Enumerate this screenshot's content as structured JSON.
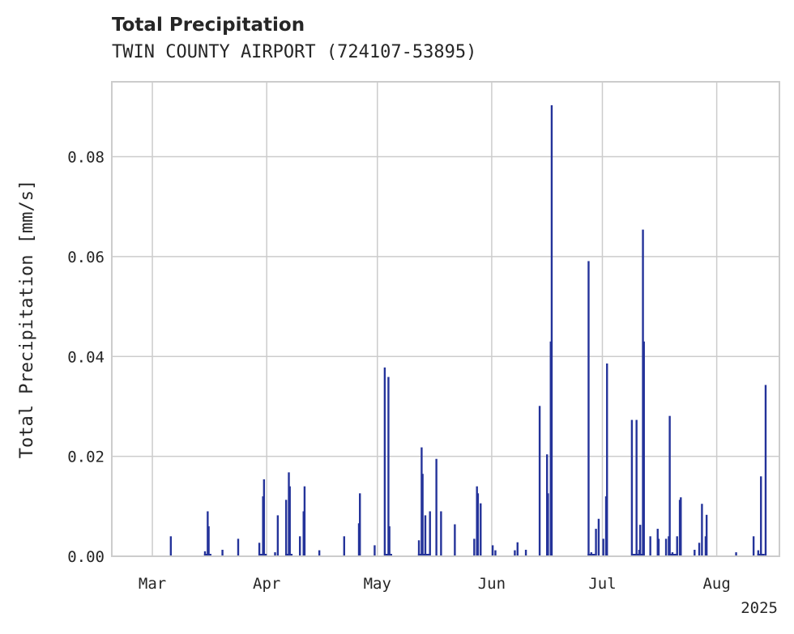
{
  "chart_data": {
    "type": "bar",
    "title": "Total Precipitation",
    "subtitle": "TWIN COUNTY AIRPORT (724107-53895)",
    "xlabel": "",
    "ylabel": "Total Precipitation [mm/s]",
    "x_tick_labels": [
      "Mar",
      "Apr",
      "May",
      "Jun",
      "Jul",
      "Aug"
    ],
    "x_ticks_dates": [
      "2025-03-01",
      "2025-04-01",
      "2025-05-01",
      "2025-06-01",
      "2025-07-01",
      "2025-08-01"
    ],
    "x_year_label": "2025",
    "xlim": [
      "2025-02-18",
      "2025-08-18"
    ],
    "ylim": [
      0,
      0.095
    ],
    "y_ticks": [
      0.0,
      0.02,
      0.04,
      0.06,
      0.08
    ],
    "y_tick_labels": [
      "0.00",
      "0.02",
      "0.04",
      "0.06",
      "0.08"
    ],
    "grid": true,
    "bar_color": "#24339a",
    "points": [
      [
        "2025-03-06",
        0.004
      ],
      [
        "2025-03-15",
        0.001
      ],
      [
        "2025-03-16",
        0.009
      ],
      [
        "2025-03-16",
        0.006
      ],
      [
        "2025-03-20",
        0.0013
      ],
      [
        "2025-03-24",
        0.0035
      ],
      [
        "2025-03-30",
        0.0027
      ],
      [
        "2025-03-31",
        0.0154
      ],
      [
        "2025-03-31",
        0.012
      ],
      [
        "2025-04-03",
        0.0008
      ],
      [
        "2025-04-04",
        0.0082
      ],
      [
        "2025-04-06",
        0.0113
      ],
      [
        "2025-04-07",
        0.0168
      ],
      [
        "2025-04-07",
        0.014
      ],
      [
        "2025-04-10",
        0.004
      ],
      [
        "2025-04-11",
        0.014
      ],
      [
        "2025-04-11",
        0.009
      ],
      [
        "2025-04-15",
        0.0012
      ],
      [
        "2025-04-22",
        0.004
      ],
      [
        "2025-04-26",
        0.0126
      ],
      [
        "2025-04-26",
        0.0066
      ],
      [
        "2025-04-30",
        0.0022
      ],
      [
        "2025-05-03",
        0.0378
      ],
      [
        "2025-05-04",
        0.006
      ],
      [
        "2025-05-04",
        0.0359
      ],
      [
        "2025-05-12",
        0.0032
      ],
      [
        "2025-05-13",
        0.0218
      ],
      [
        "2025-05-13",
        0.0165
      ],
      [
        "2025-05-14",
        0.0082
      ],
      [
        "2025-05-15",
        0.009
      ],
      [
        "2025-05-17",
        0.0195
      ],
      [
        "2025-05-18",
        0.009
      ],
      [
        "2025-05-22",
        0.0064
      ],
      [
        "2025-05-27",
        0.0035
      ],
      [
        "2025-05-28",
        0.014
      ],
      [
        "2025-05-28",
        0.0126
      ],
      [
        "2025-05-29",
        0.0106
      ],
      [
        "2025-06-01",
        0.0022
      ],
      [
        "2025-06-02",
        0.0012
      ],
      [
        "2025-06-07",
        0.0012
      ],
      [
        "2025-06-08",
        0.0028
      ],
      [
        "2025-06-10",
        0.0013
      ],
      [
        "2025-06-14",
        0.0301
      ],
      [
        "2025-06-16",
        0.0126
      ],
      [
        "2025-06-16",
        0.0204
      ],
      [
        "2025-06-17",
        0.0903
      ],
      [
        "2025-06-17",
        0.043
      ],
      [
        "2025-06-27",
        0.0591
      ],
      [
        "2025-06-28",
        0.0008
      ],
      [
        "2025-06-29",
        0.0055
      ],
      [
        "2025-06-30",
        0.0075
      ],
      [
        "2025-07-01",
        0.0035
      ],
      [
        "2025-07-02",
        0.012
      ],
      [
        "2025-07-02",
        0.0386
      ],
      [
        "2025-07-09",
        0.0273
      ],
      [
        "2025-07-10",
        0.0273
      ],
      [
        "2025-07-11",
        0.0013
      ],
      [
        "2025-07-11",
        0.0063
      ],
      [
        "2025-07-12",
        0.0654
      ],
      [
        "2025-07-12",
        0.043
      ],
      [
        "2025-07-14",
        0.004
      ],
      [
        "2025-07-16",
        0.0035
      ],
      [
        "2025-07-16",
        0.0055
      ],
      [
        "2025-07-18",
        0.0035
      ],
      [
        "2025-07-19",
        0.004
      ],
      [
        "2025-07-19",
        0.0281
      ],
      [
        "2025-07-20",
        0.0008
      ],
      [
        "2025-07-21",
        0.004
      ],
      [
        "2025-07-22",
        0.0113
      ],
      [
        "2025-07-22",
        0.0118
      ],
      [
        "2025-07-26",
        0.0013
      ],
      [
        "2025-07-27",
        0.0027
      ],
      [
        "2025-07-28",
        0.0105
      ],
      [
        "2025-07-29",
        0.0083
      ],
      [
        "2025-07-29",
        0.004
      ],
      [
        "2025-08-06",
        0.0008
      ],
      [
        "2025-08-11",
        0.004
      ],
      [
        "2025-08-12",
        0.0012
      ],
      [
        "2025-08-13",
        0.016
      ],
      [
        "2025-08-14",
        0.0343
      ]
    ]
  }
}
